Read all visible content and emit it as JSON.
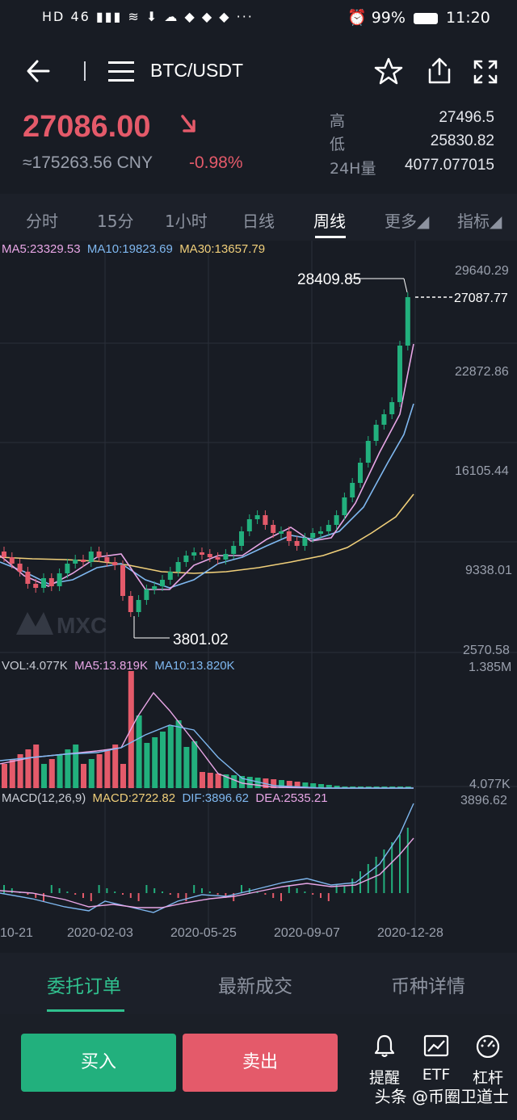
{
  "status_bar": {
    "left_icons": "HD 46 ▮▮▮ ≋ ⬇ ☁ ◆ ◆ ◆ ···",
    "battery": "99%",
    "time": "11:20"
  },
  "header": {
    "pair": "BTC/USDT",
    "back_icon": "arrow-left",
    "menu_icon": "hamburger",
    "star_icon": "star",
    "share_icon": "share",
    "fullscreen_icon": "fullscreen"
  },
  "ticker": {
    "price": "27086.00",
    "cny": "≈175263.56 CNY",
    "change": "-0.98%",
    "high_label": "高",
    "high": "27496.5",
    "low_label": "低",
    "low": "25830.82",
    "vol_label": "24H量",
    "vol": "4077.077015"
  },
  "intervals": [
    {
      "label": "分时"
    },
    {
      "label": "15分"
    },
    {
      "label": "1小时"
    },
    {
      "label": "日线"
    },
    {
      "label": "周线"
    },
    {
      "label": "更多◢"
    },
    {
      "label": "指标◢"
    }
  ],
  "chart_text": {
    "ma5": "MA5:23329.53",
    "ma10": "MA10:19823.69",
    "ma30": "MA30:13657.79",
    "price_axis": [
      "29640.29",
      "22872.86",
      "16105.44",
      "9338.01",
      "2570.58"
    ],
    "current_price_tag": "27087.77",
    "high_marker": "28409.85",
    "low_marker": "3801.02",
    "watermark": "MXC",
    "vol_label": "VOL:4.077K",
    "vol_ma5": "MA5:13.819K",
    "vol_ma10": "MA10:13.820K",
    "vol_axis_top": "1.385M",
    "vol_axis_bottom": "4.077K",
    "macd_label": "MACD(12,26,9)",
    "macd_value": "MACD:2722.82",
    "dif": "DIF:3896.62",
    "dea": "DEA:2535.21",
    "macd_axis_top": "3896.62",
    "dates": [
      "10-21",
      "2020-02-03",
      "2020-05-25",
      "2020-09-07",
      "2020-12-28"
    ]
  },
  "colors": {
    "up": "#22b07d",
    "down": "#e45a6a",
    "ma5": "#e8a6e6",
    "ma10": "#7fb8f0",
    "ma30": "#f0cf7a"
  },
  "bottom_tabs": [
    "委托订单",
    "最新成交",
    "币种详情"
  ],
  "actions": {
    "buy": "买入",
    "sell": "卖出",
    "tools": [
      {
        "label": "提醒",
        "icon": "bell"
      },
      {
        "label": "ETF",
        "icon": "chart-line"
      },
      {
        "label": "杠杆",
        "icon": "gauge"
      }
    ]
  },
  "watermark_text": "头条 @币圈卫道士"
}
